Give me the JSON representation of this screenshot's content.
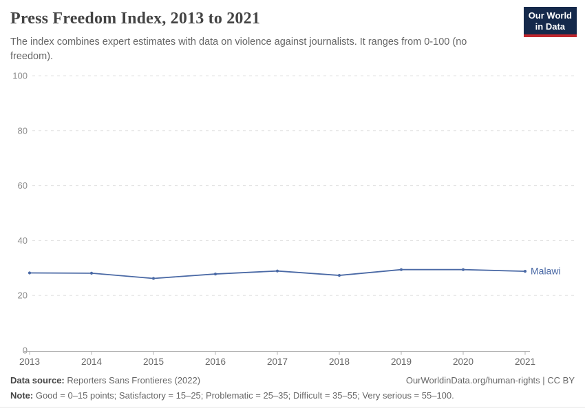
{
  "header": {
    "title": "Press Freedom Index, 2013 to 2021",
    "subtitle": "The index combines expert estimates with data on violence against journalists. It ranges from 0-100 (no freedom).",
    "logo": {
      "line1": "Our World",
      "line2": "in Data",
      "bg_color": "#15294b",
      "bar_color": "#c0262d"
    }
  },
  "chart_data": {
    "type": "line",
    "title": "Press Freedom Index, 2013 to 2021",
    "x": [
      2013,
      2014,
      2015,
      2016,
      2017,
      2018,
      2019,
      2020,
      2021
    ],
    "series": [
      {
        "name": "Malawi",
        "color": "#4a69a5",
        "values": [
          28.2,
          28.1,
          26.2,
          27.8,
          28.9,
          27.3,
          29.4,
          29.4,
          28.8
        ]
      }
    ],
    "xlabel": "",
    "ylabel": "",
    "ylim": [
      0,
      100
    ],
    "yticks": [
      0,
      20,
      40,
      60,
      80,
      100
    ],
    "grid": "horizontal-dashed",
    "grid_color": "#e0e0e0",
    "axis_color": "#b0b0b0",
    "ytick_label_color": "#8b8b8b",
    "xtick_label_color": "#666666",
    "legend_position": "end-of-line-label"
  },
  "footer": {
    "datasource_label": "Data source:",
    "datasource_value": "Reporters Sans Frontieres (2022)",
    "link": "OurWorldinData.org/human-rights | CC BY",
    "note_label": "Note:",
    "note_value": "Good = 0–15 points; Satisfactory = 15–25; Problematic = 25–35; Difficult = 35–55; Very serious = 55–100."
  }
}
